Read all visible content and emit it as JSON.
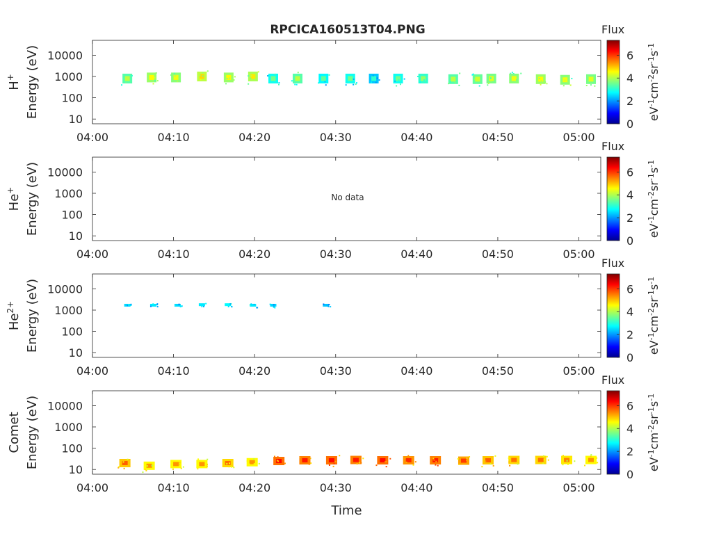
{
  "title": "RPCICA160513T04.PNG",
  "colors": {
    "axis": "#262626",
    "background": "#ffffff",
    "colormap": [
      "#00008f",
      "#0000ff",
      "#00ffff",
      "#ffff00",
      "#ff0000",
      "#800000"
    ]
  },
  "chart_data": [
    {
      "type": "heatmap",
      "species": "H",
      "species_sup": "+",
      "ylabel_line2": "Energy (eV)",
      "xlabel": "",
      "x_ticks": [
        "04:00",
        "04:10",
        "04:20",
        "04:30",
        "04:40",
        "04:50",
        "05:00"
      ],
      "y_ticks": [
        "10",
        "100",
        "1000",
        "10000"
      ],
      "yscale": "log",
      "colorbar": {
        "title": "Flux",
        "unit_parts": [
          "eV",
          "-1",
          "cm",
          "-2",
          "sr",
          "-1",
          "s",
          "-1"
        ],
        "ticks": [
          "0",
          "2",
          "4",
          "6"
        ],
        "range": [
          0,
          7.3
        ]
      },
      "no_data_text": "",
      "blobs": [
        {
          "t": 4.3,
          "e": 800,
          "f": 4.0
        },
        {
          "t": 7.3,
          "e": 900,
          "f": 4.4
        },
        {
          "t": 10.3,
          "e": 900,
          "f": 4.3
        },
        {
          "t": 13.5,
          "e": 1000,
          "f": 4.6
        },
        {
          "t": 16.8,
          "e": 900,
          "f": 4.4
        },
        {
          "t": 19.8,
          "e": 1000,
          "f": 4.5
        },
        {
          "t": 22.3,
          "e": 800,
          "f": 3.6
        },
        {
          "t": 25.3,
          "e": 800,
          "f": 4.0
        },
        {
          "t": 28.5,
          "e": 800,
          "f": 3.5
        },
        {
          "t": 31.8,
          "e": 800,
          "f": 3.6
        },
        {
          "t": 34.7,
          "e": 800,
          "f": 3.2
        },
        {
          "t": 37.7,
          "e": 800,
          "f": 3.6
        },
        {
          "t": 40.8,
          "e": 800,
          "f": 3.8
        },
        {
          "t": 44.5,
          "e": 750,
          "f": 4.0
        },
        {
          "t": 47.5,
          "e": 750,
          "f": 4.1
        },
        {
          "t": 49.2,
          "e": 800,
          "f": 4.2
        },
        {
          "t": 52.0,
          "e": 800,
          "f": 4.3
        },
        {
          "t": 55.3,
          "e": 750,
          "f": 4.4
        },
        {
          "t": 58.3,
          "e": 700,
          "f": 4.3
        },
        {
          "t": 61.5,
          "e": 750,
          "f": 4.2
        }
      ]
    },
    {
      "type": "heatmap",
      "species": "He",
      "species_sup": "+",
      "ylabel_line2": "Energy (eV)",
      "xlabel": "",
      "x_ticks": [
        "04:00",
        "04:10",
        "04:20",
        "04:30",
        "04:40",
        "04:50",
        "05:00"
      ],
      "y_ticks": [
        "10",
        "100",
        "1000",
        "10000"
      ],
      "yscale": "log",
      "colorbar": {
        "title": "Flux",
        "unit_parts": [
          "eV",
          "-1",
          "cm",
          "-2",
          "sr",
          "-1",
          "s",
          "-1"
        ],
        "ticks": [
          "0",
          "2",
          "4",
          "6"
        ],
        "range": [
          0,
          7.3
        ]
      },
      "no_data_text": "No data",
      "blobs": []
    },
    {
      "type": "heatmap",
      "species": "He",
      "species_sup": "2+",
      "ylabel_line2": "Energy (eV)",
      "xlabel": "",
      "x_ticks": [
        "04:00",
        "04:10",
        "04:20",
        "04:30",
        "04:40",
        "04:50",
        "05:00"
      ],
      "y_ticks": [
        "10",
        "100",
        "1000",
        "10000"
      ],
      "yscale": "log",
      "colorbar": {
        "title": "Flux",
        "unit_parts": [
          "eV",
          "-1",
          "cm",
          "-2",
          "sr",
          "-1",
          "s",
          "-1"
        ],
        "ticks": [
          "0",
          "2",
          "4",
          "6"
        ],
        "range": [
          0,
          7.3
        ]
      },
      "no_data_text": "",
      "blobs": [
        {
          "t": 4.3,
          "e": 1700,
          "f": 3.3
        },
        {
          "t": 7.5,
          "e": 1700,
          "f": 3.4
        },
        {
          "t": 10.5,
          "e": 1700,
          "f": 3.3
        },
        {
          "t": 13.5,
          "e": 1800,
          "f": 3.4
        },
        {
          "t": 16.7,
          "e": 1800,
          "f": 3.5
        },
        {
          "t": 19.8,
          "e": 1700,
          "f": 3.4
        },
        {
          "t": 22.3,
          "e": 1700,
          "f": 3.3
        },
        {
          "t": 28.8,
          "e": 1700,
          "f": 3.2
        }
      ]
    },
    {
      "type": "heatmap",
      "species": "Comet",
      "species_sup": "",
      "ylabel_line2": "Energy (eV)",
      "xlabel": "Time",
      "x_ticks": [
        "04:00",
        "04:10",
        "04:20",
        "04:30",
        "04:40",
        "04:50",
        "05:00"
      ],
      "y_ticks": [
        "10",
        "100",
        "1000",
        "10000"
      ],
      "yscale": "log",
      "colorbar": {
        "title": "Flux",
        "unit_parts": [
          "eV",
          "-1",
          "cm",
          "-2",
          "sr",
          "-1",
          "s",
          "-1"
        ],
        "ticks": [
          "0",
          "2",
          "4",
          "6"
        ],
        "range": [
          0,
          7.3
        ]
      },
      "no_data_text": "",
      "blobs": [
        {
          "t": 4.0,
          "e": 20,
          "f": 5.3
        },
        {
          "t": 7.0,
          "e": 15,
          "f": 5.0
        },
        {
          "t": 10.3,
          "e": 18,
          "f": 5.0
        },
        {
          "t": 13.5,
          "e": 18,
          "f": 5.0
        },
        {
          "t": 16.7,
          "e": 20,
          "f": 5.2
        },
        {
          "t": 19.7,
          "e": 22,
          "f": 5.0
        },
        {
          "t": 23.0,
          "e": 25,
          "f": 5.8
        },
        {
          "t": 26.2,
          "e": 27,
          "f": 5.7
        },
        {
          "t": 29.5,
          "e": 27,
          "f": 5.8
        },
        {
          "t": 32.5,
          "e": 28,
          "f": 5.7
        },
        {
          "t": 35.8,
          "e": 27,
          "f": 5.8
        },
        {
          "t": 39.0,
          "e": 27,
          "f": 5.6
        },
        {
          "t": 42.3,
          "e": 27,
          "f": 5.7
        },
        {
          "t": 45.8,
          "e": 26,
          "f": 5.5
        },
        {
          "t": 48.8,
          "e": 27,
          "f": 5.3
        },
        {
          "t": 52.0,
          "e": 28,
          "f": 5.2
        },
        {
          "t": 55.3,
          "e": 28,
          "f": 5.2
        },
        {
          "t": 58.5,
          "e": 28,
          "f": 5.1
        },
        {
          "t": 61.5,
          "e": 28,
          "f": 5.0
        }
      ]
    }
  ]
}
